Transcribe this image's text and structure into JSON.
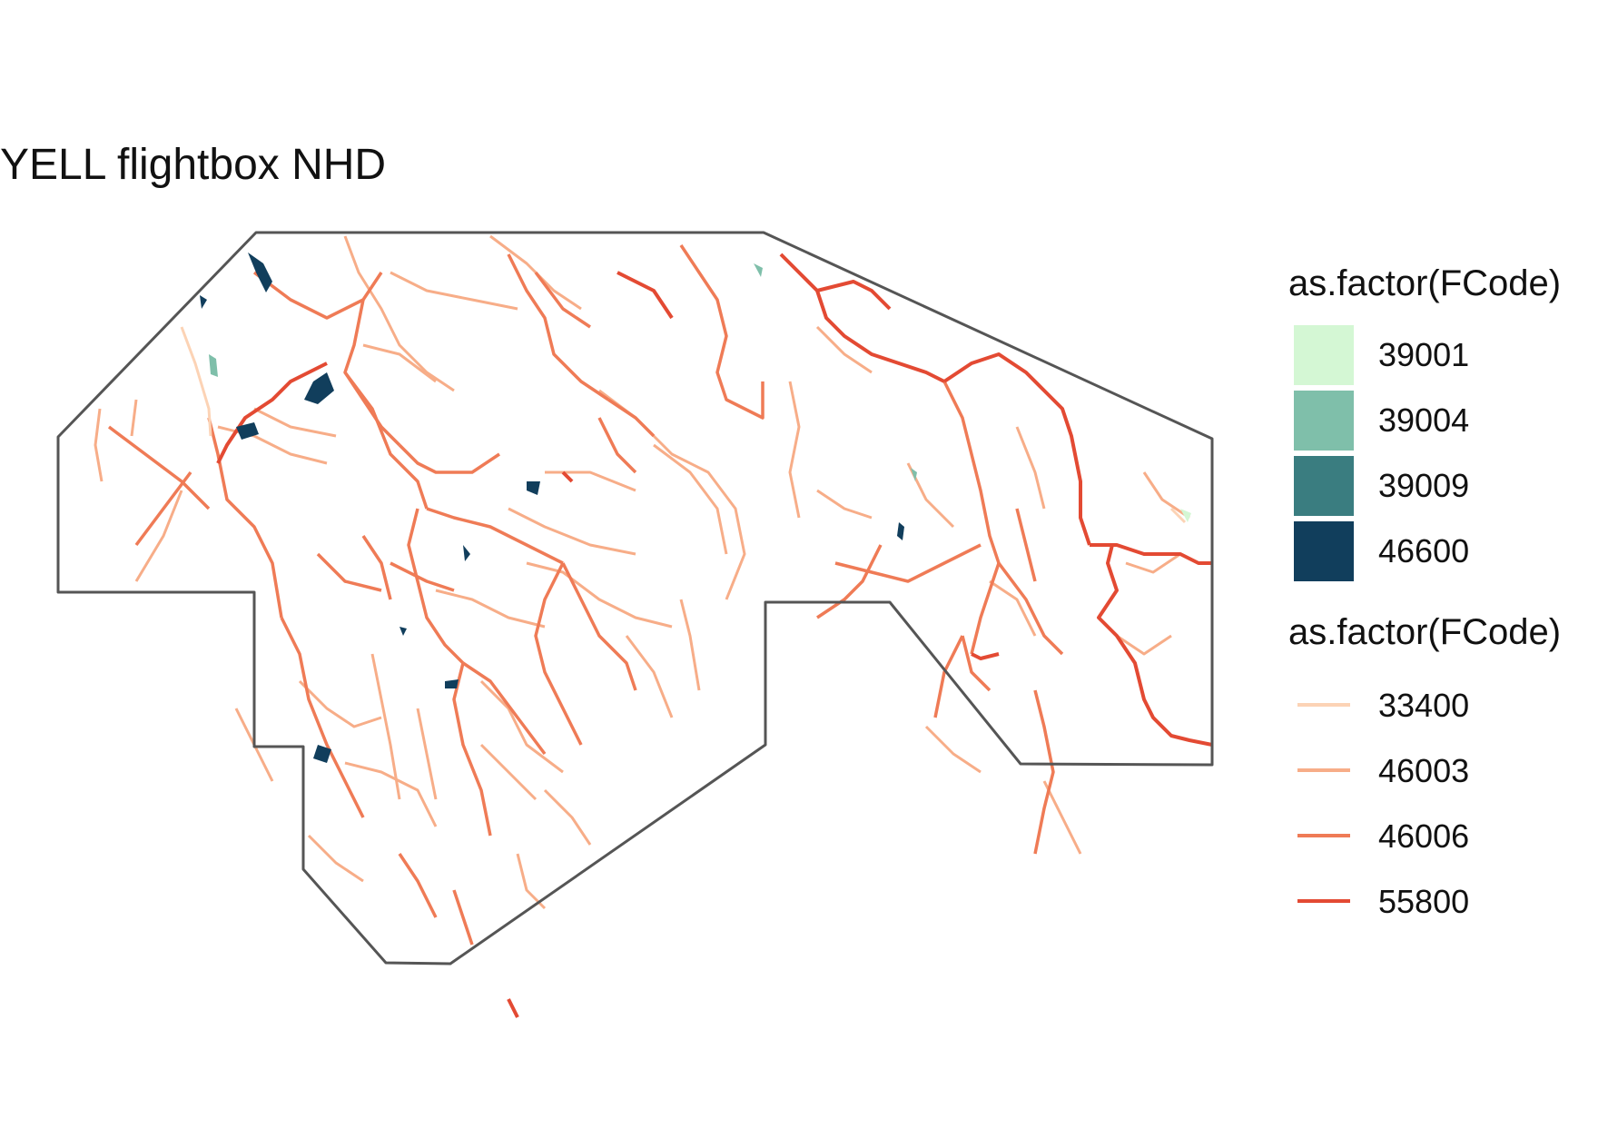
{
  "title": "YELL flightbox NHD",
  "legend": {
    "fill": {
      "title": "as.factor(FCode)",
      "items": [
        {
          "label": "39001",
          "color": "#d4f7d4"
        },
        {
          "label": "39004",
          "color": "#7fbfaa"
        },
        {
          "label": "39009",
          "color": "#3a7d80"
        },
        {
          "label": "46600",
          "color": "#113e5c"
        }
      ]
    },
    "line": {
      "title": "as.factor(FCode)",
      "items": [
        {
          "label": "33400",
          "color": "#fcd3b5"
        },
        {
          "label": "46003",
          "color": "#f7ad88"
        },
        {
          "label": "46006",
          "color": "#ef7b56"
        },
        {
          "label": "55800",
          "color": "#e34a33"
        }
      ]
    }
  }
}
